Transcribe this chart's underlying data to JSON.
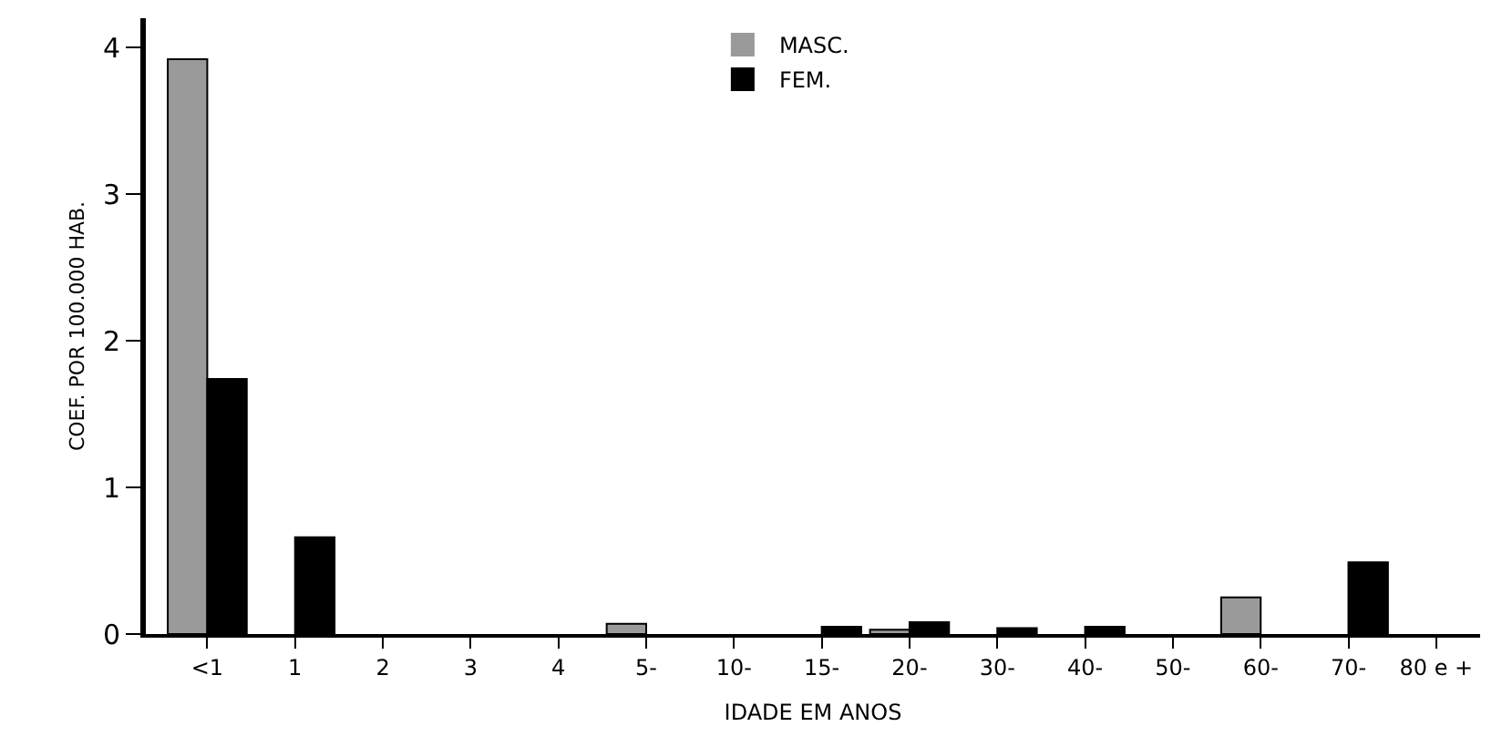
{
  "chart_data": {
    "type": "bar",
    "xlabel": "IDADE EM ANOS",
    "ylabel": "COEF. POR 100.000 HAB.",
    "categories": [
      "<1",
      "1",
      "2",
      "3",
      "4",
      "5-",
      "10-",
      "15-",
      "20-",
      "30-",
      "40-",
      "50-",
      "60-",
      "70-",
      "80 e +"
    ],
    "series": [
      {
        "name": "MASC.",
        "color": "#9a9a9a",
        "values": [
          3.92,
          0,
          0,
          0,
          0,
          0.07,
          0,
          0,
          0.03,
          0,
          0,
          0,
          0.25,
          0,
          0
        ]
      },
      {
        "name": "FEM.",
        "color": "#000000",
        "values": [
          1.74,
          0.66,
          0,
          0,
          0,
          0,
          0,
          0.05,
          0.08,
          0.04,
          0.05,
          0,
          0,
          0.49,
          0
        ]
      }
    ],
    "ylim": [
      0,
      4.2
    ],
    "yticks": [
      0,
      1,
      2,
      3,
      4
    ],
    "grid": false,
    "legend": "top"
  }
}
